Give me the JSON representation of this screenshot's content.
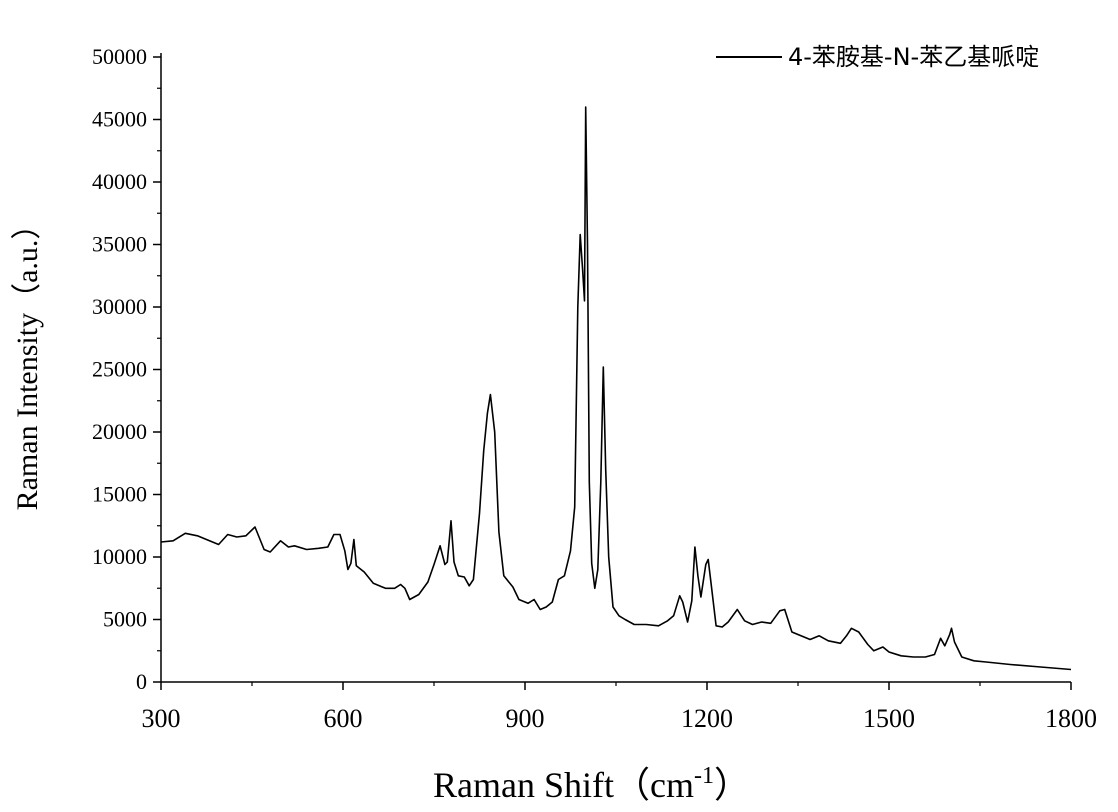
{
  "chart_data": {
    "type": "line",
    "title": "",
    "xlabel": "Raman Shift（cm",
    "xlabel_sup": "-1",
    "xlabel_close": "）",
    "ylabel": "Raman Intensity（a.u.）",
    "xlim": [
      300,
      1800
    ],
    "ylim": [
      0,
      50000
    ],
    "x_ticks": [
      300,
      600,
      900,
      1200,
      1500,
      1800
    ],
    "y_ticks": [
      0,
      5000,
      10000,
      15000,
      20000,
      25000,
      30000,
      35000,
      40000,
      45000,
      50000
    ],
    "legend_position": "top-right",
    "series": [
      {
        "name": "4-苯胺基-N-苯乙基哌啶",
        "color": "#000000",
        "points": [
          [
            300,
            11200
          ],
          [
            320,
            11300
          ],
          [
            340,
            11900
          ],
          [
            360,
            11700
          ],
          [
            380,
            11300
          ],
          [
            395,
            11000
          ],
          [
            410,
            11800
          ],
          [
            425,
            11600
          ],
          [
            440,
            11700
          ],
          [
            455,
            12400
          ],
          [
            470,
            10600
          ],
          [
            480,
            10400
          ],
          [
            497,
            11300
          ],
          [
            510,
            10800
          ],
          [
            520,
            10900
          ],
          [
            540,
            10600
          ],
          [
            560,
            10700
          ],
          [
            575,
            10800
          ],
          [
            585,
            11800
          ],
          [
            595,
            11800
          ],
          [
            603,
            10500
          ],
          [
            608,
            9000
          ],
          [
            613,
            9500
          ],
          [
            618,
            11400
          ],
          [
            622,
            9300
          ],
          [
            635,
            8800
          ],
          [
            650,
            7900
          ],
          [
            670,
            7500
          ],
          [
            685,
            7500
          ],
          [
            695,
            7800
          ],
          [
            702,
            7500
          ],
          [
            710,
            6600
          ],
          [
            725,
            7000
          ],
          [
            740,
            8000
          ],
          [
            750,
            9400
          ],
          [
            760,
            10900
          ],
          [
            768,
            9400
          ],
          [
            772,
            9600
          ],
          [
            778,
            12900
          ],
          [
            783,
            9600
          ],
          [
            790,
            8500
          ],
          [
            800,
            8400
          ],
          [
            808,
            7700
          ],
          [
            815,
            8200
          ],
          [
            825,
            13500
          ],
          [
            832,
            18500
          ],
          [
            838,
            21500
          ],
          [
            843,
            23000
          ],
          [
            850,
            20000
          ],
          [
            857,
            12000
          ],
          [
            865,
            8500
          ],
          [
            880,
            7600
          ],
          [
            890,
            6600
          ],
          [
            905,
            6300
          ],
          [
            915,
            6600
          ],
          [
            925,
            5800
          ],
          [
            935,
            6000
          ],
          [
            945,
            6400
          ],
          [
            955,
            8200
          ],
          [
            965,
            8500
          ],
          [
            975,
            10500
          ],
          [
            982,
            14000
          ],
          [
            987,
            30000
          ],
          [
            991,
            35800
          ],
          [
            995,
            33000
          ],
          [
            998,
            30500
          ],
          [
            1000,
            46000
          ],
          [
            1003,
            35000
          ],
          [
            1006,
            16000
          ],
          [
            1010,
            9500
          ],
          [
            1015,
            7500
          ],
          [
            1020,
            9000
          ],
          [
            1025,
            16000
          ],
          [
            1029,
            25200
          ],
          [
            1033,
            17000
          ],
          [
            1038,
            10000
          ],
          [
            1045,
            6000
          ],
          [
            1055,
            5300
          ],
          [
            1065,
            5000
          ],
          [
            1080,
            4600
          ],
          [
            1100,
            4600
          ],
          [
            1120,
            4500
          ],
          [
            1135,
            4900
          ],
          [
            1145,
            5300
          ],
          [
            1155,
            6900
          ],
          [
            1160,
            6400
          ],
          [
            1168,
            4800
          ],
          [
            1175,
            6500
          ],
          [
            1180,
            10800
          ],
          [
            1185,
            8500
          ],
          [
            1190,
            6800
          ],
          [
            1198,
            9400
          ],
          [
            1202,
            9800
          ],
          [
            1207,
            7800
          ],
          [
            1215,
            4500
          ],
          [
            1225,
            4400
          ],
          [
            1235,
            4800
          ],
          [
            1250,
            5800
          ],
          [
            1262,
            4900
          ],
          [
            1275,
            4600
          ],
          [
            1290,
            4800
          ],
          [
            1305,
            4700
          ],
          [
            1320,
            5700
          ],
          [
            1328,
            5800
          ],
          [
            1340,
            4000
          ],
          [
            1355,
            3700
          ],
          [
            1370,
            3400
          ],
          [
            1385,
            3700
          ],
          [
            1400,
            3300
          ],
          [
            1420,
            3100
          ],
          [
            1430,
            3700
          ],
          [
            1438,
            4300
          ],
          [
            1450,
            4000
          ],
          [
            1465,
            3000
          ],
          [
            1475,
            2500
          ],
          [
            1490,
            2800
          ],
          [
            1500,
            2400
          ],
          [
            1520,
            2100
          ],
          [
            1540,
            2000
          ],
          [
            1560,
            2000
          ],
          [
            1575,
            2200
          ],
          [
            1585,
            3500
          ],
          [
            1592,
            2900
          ],
          [
            1600,
            3800
          ],
          [
            1603,
            4300
          ],
          [
            1608,
            3200
          ],
          [
            1620,
            2000
          ],
          [
            1640,
            1700
          ],
          [
            1660,
            1600
          ],
          [
            1700,
            1400
          ],
          [
            1750,
            1200
          ],
          [
            1800,
            1000
          ]
        ]
      }
    ]
  }
}
